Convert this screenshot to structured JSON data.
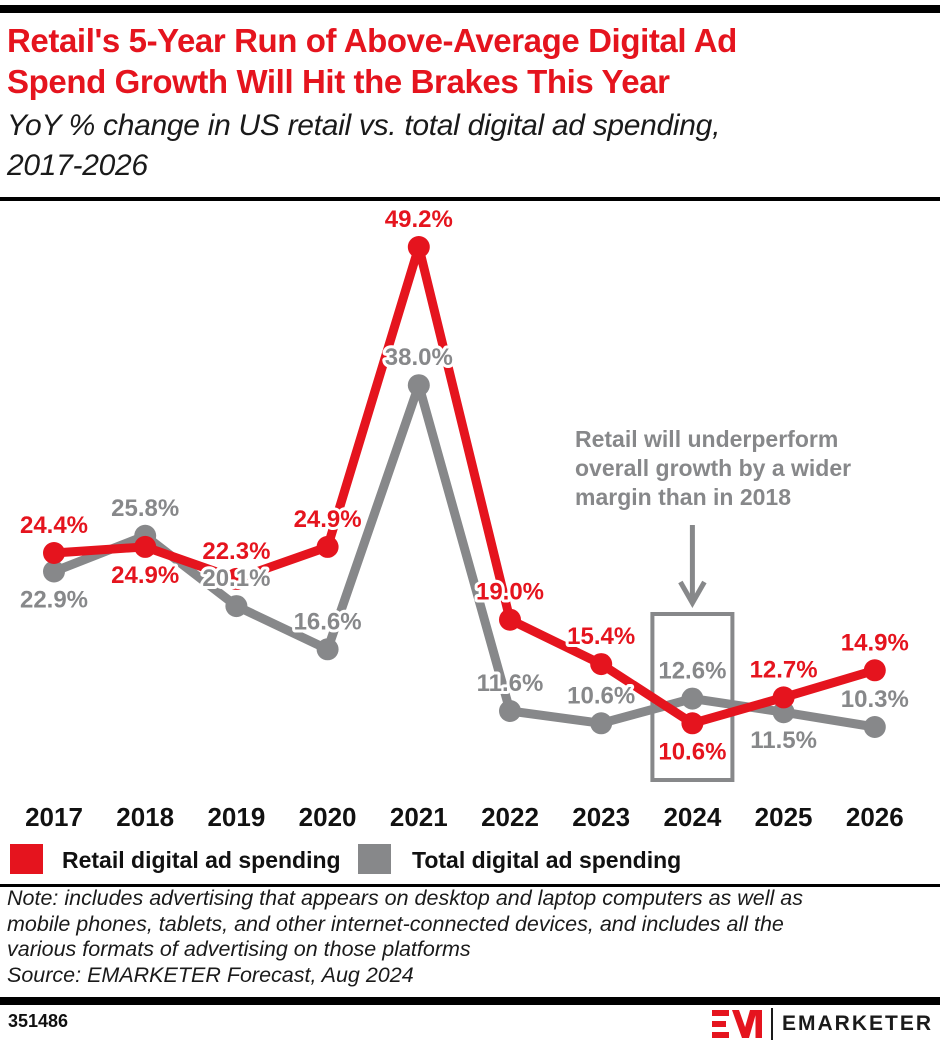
{
  "header": {
    "title": "Retail's 5-Year Run of Above-Average Digital Ad\nSpend Growth Will Hit the Brakes This Year",
    "subtitle": "YoY % change in US retail vs. total digital ad spending,\n2017-2026"
  },
  "chart_data": {
    "type": "line",
    "categories": [
      "2017",
      "2018",
      "2019",
      "2020",
      "2021",
      "2022",
      "2023",
      "2024",
      "2025",
      "2026"
    ],
    "series": [
      {
        "name": "Retail digital ad spending",
        "color": "#E5141E",
        "values": [
          24.4,
          24.9,
          22.3,
          24.9,
          49.2,
          19.0,
          15.4,
          10.6,
          12.7,
          14.9
        ],
        "label_positions": [
          "above",
          "below",
          "above",
          "above",
          "above",
          "above",
          "above",
          "below",
          "above",
          "above"
        ]
      },
      {
        "name": "Total digital ad spending",
        "color": "#87888A",
        "values": [
          22.9,
          25.8,
          20.1,
          16.6,
          38.0,
          11.6,
          10.6,
          12.6,
          11.5,
          10.3
        ],
        "label_positions": [
          "below",
          "above",
          "above",
          "above",
          "above",
          "above",
          "above",
          "above",
          "below",
          "above"
        ]
      }
    ],
    "ylim": [
      8,
      52
    ],
    "grid": false,
    "legend_position": "bottom",
    "data_label_format": "0.0%",
    "annotation": {
      "text": "Retail will underperform\noverall growth by a wider\nmargin than in 2018",
      "color": "#87888A",
      "arrow_to_category": "2024",
      "highlight_category": "2024"
    }
  },
  "legend": {
    "items": [
      {
        "label": "Retail digital ad spending",
        "color": "#E5141E"
      },
      {
        "label": "Total digital ad spending",
        "color": "#87888A"
      }
    ]
  },
  "note": {
    "text": "Note: includes advertising that appears on desktop and laptop computers as well as\nmobile phones, tablets, and other internet-connected devices, and includes all the\nvarious formats of advertising on those platforms",
    "source": "Source: EMARKETER Forecast, Aug 2024"
  },
  "footer": {
    "chart_id": "351486",
    "brand": "EMARKETER"
  },
  "colors": {
    "accent_red": "#E5141E",
    "gray": "#87888A",
    "black": "#000000"
  }
}
